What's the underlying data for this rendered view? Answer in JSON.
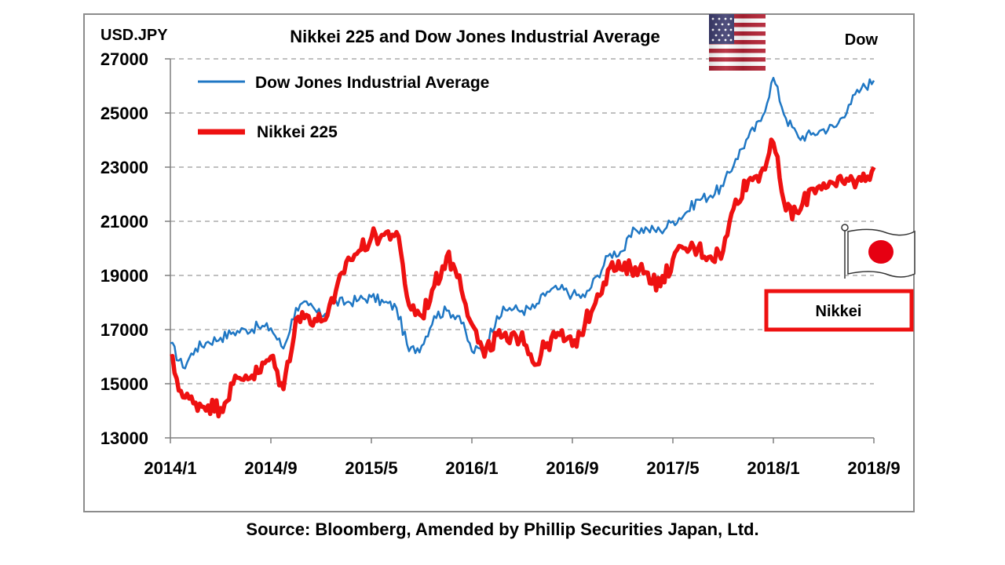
{
  "chart_data": {
    "type": "line",
    "title": "Nikkei 225 and Dow Jones Industrial Average",
    "ylabel_left": "USD.JPY",
    "ylabel_right": "Dow",
    "y_ticks": [
      13000,
      15000,
      17000,
      19000,
      21000,
      23000,
      25000,
      27000
    ],
    "ylim": [
      13000,
      27000
    ],
    "x_tick_labels": [
      "2014/1",
      "2014/9",
      "2015/5",
      "2016/1",
      "2016/9",
      "2017/5",
      "2018/1",
      "2018/9"
    ],
    "x_tick_dates": [
      "2014-01",
      "2014-09",
      "2015-05",
      "2016-01",
      "2016-09",
      "2017-05",
      "2018-01",
      "2018-09"
    ],
    "grid": "horizontal dashed",
    "legend_position": "top-left",
    "series": [
      {
        "name": "Dow Jones Industrial Average",
        "color": "#1f77c4",
        "x": [
          "2014-01",
          "2014-02",
          "2014-03",
          "2014-04",
          "2014-05",
          "2014-06",
          "2014-07",
          "2014-08",
          "2014-09",
          "2014-10",
          "2014-11",
          "2014-12",
          "2015-01",
          "2015-02",
          "2015-03",
          "2015-04",
          "2015-05",
          "2015-06",
          "2015-07",
          "2015-08",
          "2015-09",
          "2015-10",
          "2015-11",
          "2015-12",
          "2016-01",
          "2016-02",
          "2016-03",
          "2016-04",
          "2016-05",
          "2016-06",
          "2016-07",
          "2016-08",
          "2016-09",
          "2016-10",
          "2016-11",
          "2016-12",
          "2017-01",
          "2017-02",
          "2017-03",
          "2017-04",
          "2017-05",
          "2017-06",
          "2017-07",
          "2017-08",
          "2017-09",
          "2017-10",
          "2017-11",
          "2017-12",
          "2018-01",
          "2018-02",
          "2018-03",
          "2018-04",
          "2018-05",
          "2018-06",
          "2018-07",
          "2018-08",
          "2018-09"
        ],
        "y": [
          16500,
          15600,
          16300,
          16550,
          16700,
          16900,
          17000,
          17100,
          17050,
          16300,
          17800,
          17900,
          17500,
          18000,
          18000,
          18100,
          18200,
          18000,
          17800,
          16200,
          16400,
          17500,
          17700,
          17500,
          16200,
          16300,
          17500,
          17800,
          17700,
          17800,
          18400,
          18500,
          18300,
          18200,
          19000,
          19800,
          19900,
          20700,
          20700,
          20650,
          21000,
          21300,
          21800,
          21950,
          22300,
          23300,
          24100,
          24700,
          26300,
          24800,
          24100,
          24200,
          24400,
          24500,
          25300,
          25900,
          26200
        ]
      },
      {
        "name": "Nikkei 225",
        "color": "#ee1111",
        "x": [
          "2014-01",
          "2014-02",
          "2014-03",
          "2014-04",
          "2014-05",
          "2014-06",
          "2014-07",
          "2014-08",
          "2014-09",
          "2014-10",
          "2014-11",
          "2014-12",
          "2015-01",
          "2015-02",
          "2015-03",
          "2015-04",
          "2015-05",
          "2015-06",
          "2015-07",
          "2015-08",
          "2015-09",
          "2015-10",
          "2015-11",
          "2015-12",
          "2016-01",
          "2016-02",
          "2016-03",
          "2016-04",
          "2016-05",
          "2016-06",
          "2016-07",
          "2016-08",
          "2016-09",
          "2016-10",
          "2016-11",
          "2016-12",
          "2017-01",
          "2017-02",
          "2017-03",
          "2017-04",
          "2017-05",
          "2017-06",
          "2017-07",
          "2017-08",
          "2017-09",
          "2017-10",
          "2017-11",
          "2017-12",
          "2018-01",
          "2018-02",
          "2018-03",
          "2018-04",
          "2018-05",
          "2018-06",
          "2018-07",
          "2018-08",
          "2018-09"
        ],
        "y": [
          16000,
          14500,
          14300,
          14200,
          14100,
          15000,
          15300,
          15400,
          16000,
          14800,
          17400,
          17500,
          17300,
          18000,
          19500,
          19900,
          20400,
          20500,
          20600,
          17900,
          17500,
          18600,
          19700,
          19000,
          17200,
          16000,
          16800,
          16500,
          16900,
          15700,
          16500,
          16800,
          16400,
          17200,
          18300,
          19300,
          19200,
          19300,
          19100,
          18600,
          19600,
          20000,
          20000,
          19700,
          19900,
          21800,
          22500,
          22800,
          23900,
          21400,
          21300,
          22200,
          22400,
          22300,
          22500,
          22500,
          23000
        ]
      }
    ]
  },
  "source": "Source: Bloomberg, Amended by Phillip Securities Japan, Ltd.",
  "nikkei_box_label": "Nikkei",
  "colors": {
    "dow": "#1f77c4",
    "nikkei": "#ee1111",
    "grid": "#9a9a9a",
    "axis": "#7f7f7f"
  },
  "icons": {
    "us_flag": "us-flag-icon",
    "japan_flag": "japan-flag-icon"
  }
}
